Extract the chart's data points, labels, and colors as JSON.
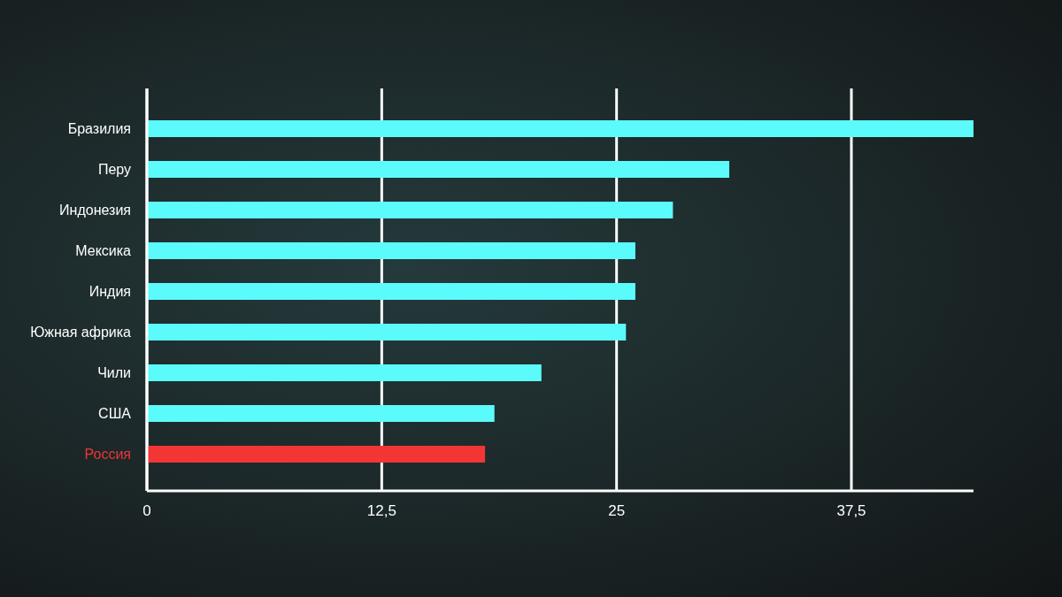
{
  "chart_data": {
    "type": "bar",
    "orientation": "horizontal",
    "categories": [
      "Бразилия",
      "Перу",
      "Индонезия",
      "Мексика",
      "Индия",
      "Южная африка",
      "Чили",
      "США",
      "Россия"
    ],
    "values": [
      44,
      31,
      28,
      26,
      26,
      25.5,
      21,
      18.5,
      18
    ],
    "color": "#5cfbfb",
    "colors": [
      "#5cfbfb",
      "#5cfbfb",
      "#5cfbfb",
      "#5cfbfb",
      "#5cfbfb",
      "#5cfbfb",
      "#5cfbfb",
      "#5cfbfb",
      "#f23535"
    ],
    "xlim": [
      0,
      44
    ],
    "xticks": [
      0,
      {
        "value": 12.5,
        "label": "12,5"
      },
      25,
      {
        "value": 37.5,
        "label": "37,5"
      }
    ],
    "grid": "x"
  }
}
